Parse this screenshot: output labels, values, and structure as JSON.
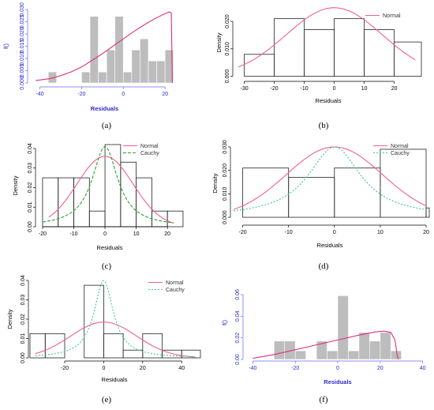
{
  "chart_data": [
    {
      "caption": "(a)",
      "type": "bar",
      "style": "blue",
      "fill": "#bdbdbd",
      "bins_edge": "#ffffff",
      "xlabel": "Residuals",
      "ylabel": "f()",
      "xlim": [
        -44,
        26
      ],
      "ylim": [
        0,
        0.03
      ],
      "xticks": [
        -40,
        -20,
        0,
        20
      ],
      "yticks": [
        0,
        0.005,
        0.01,
        0.015,
        0.02,
        0.025,
        0.03
      ],
      "ytick_labels": [
        "0.000",
        "0.005",
        "0.010",
        "0.015",
        "0.020",
        "0.025",
        "0.030"
      ],
      "bins": [
        [
          -36,
          -32,
          0.0045
        ],
        [
          -32,
          -24,
          0
        ],
        [
          -24,
          -20,
          0
        ],
        [
          -20,
          -16,
          0.0045
        ],
        [
          -16,
          -12,
          0.0272
        ],
        [
          -12,
          -8,
          0.0045
        ],
        [
          -8,
          -4,
          0.0135
        ],
        [
          -4,
          0,
          0.0272
        ],
        [
          0,
          4,
          0.0045
        ],
        [
          4,
          8,
          0.0135
        ],
        [
          8,
          12,
          0.018
        ],
        [
          12,
          16,
          0.009
        ],
        [
          16,
          20,
          0.009
        ],
        [
          20,
          24,
          0.0135
        ]
      ],
      "curves": [
        {
          "color": "#e0307a",
          "dash": "",
          "points": [
            [
              -42,
              0.001
            ],
            [
              -35,
              0.0018
            ],
            [
              -30,
              0.003
            ],
            [
              -25,
              0.0045
            ],
            [
              -20,
              0.0065
            ],
            [
              -15,
              0.0092
            ],
            [
              -10,
              0.012
            ],
            [
              -5,
              0.015
            ],
            [
              0,
              0.018
            ],
            [
              5,
              0.021
            ],
            [
              10,
              0.0237
            ],
            [
              15,
              0.0262
            ],
            [
              20,
              0.0283
            ],
            [
              22,
              0.029
            ],
            [
              23,
              0.0285
            ],
            [
              23.5,
              0.0
            ]
          ]
        }
      ],
      "legend": []
    },
    {
      "caption": "(b)",
      "type": "bar",
      "style": "black",
      "fill": "none",
      "xlabel": "Residuals",
      "ylabel": "Density",
      "xlim": [
        -32,
        28
      ],
      "ylim": [
        -0.001,
        0.0255
      ],
      "xticks": [
        -30,
        -20,
        -10,
        0,
        10,
        20
      ],
      "yticks": [
        0,
        0.01,
        0.02
      ],
      "ytick_labels": [
        "0.000",
        "0.010",
        "0.020"
      ],
      "bins": [
        [
          -30,
          -20,
          0.008
        ],
        [
          -20,
          -10,
          0.021
        ],
        [
          -10,
          0,
          0.017
        ],
        [
          0,
          10,
          0.021
        ],
        [
          10,
          20,
          0.017
        ],
        [
          20,
          30,
          0.0125
        ]
      ],
      "curves": [
        {
          "color": "#f4608a",
          "dash": "",
          "normal": {
            "mu": 0,
            "sd": 16,
            "peak": 0.025
          },
          "range": [
            -32,
            27
          ]
        }
      ],
      "legend": [
        {
          "name": "Normal",
          "color": "#f4608a",
          "dash": ""
        }
      ]
    },
    {
      "caption": "(c)",
      "type": "bar",
      "style": "black",
      "fill": "none",
      "xlabel": "Residuals",
      "ylabel": "Density",
      "xlim": [
        -21,
        24
      ],
      "ylim": [
        0,
        0.042
      ],
      "xticks": [
        -20,
        -10,
        0,
        10,
        20
      ],
      "yticks": [
        0,
        0.01,
        0.02,
        0.03,
        0.04
      ],
      "ytick_labels": [
        "0.00",
        "0.01",
        "0.02",
        "0.03",
        "0.04"
      ],
      "bins": [
        [
          -20,
          -15,
          0.025
        ],
        [
          -15,
          -10,
          0.025
        ],
        [
          -10,
          -5,
          0.025
        ],
        [
          -5,
          0,
          0.008
        ],
        [
          0,
          5,
          0.042
        ],
        [
          5,
          10,
          0.033
        ],
        [
          10,
          15,
          0.025
        ],
        [
          15,
          20,
          0.008
        ],
        [
          20,
          25,
          0.008
        ]
      ],
      "curves": [
        {
          "color": "#f4608a",
          "dash": "",
          "normal": {
            "mu": 0,
            "sd": 9,
            "peak": 0.036
          },
          "range": [
            -18,
            22
          ]
        },
        {
          "color": "#2ca02c",
          "dash": "4,2",
          "cauchy": {
            "x0": 0,
            "g": 5,
            "peak": 0.041
          },
          "range": [
            -20,
            22
          ]
        }
      ],
      "legend": [
        {
          "name": "Normal",
          "color": "#f4608a",
          "dash": ""
        },
        {
          "name": "Cauchy",
          "color": "#2ca02c",
          "dash": "4,2"
        }
      ]
    },
    {
      "caption": "(d)",
      "type": "bar",
      "style": "black",
      "fill": "none",
      "xlabel": "Residuals",
      "ylabel": "Density",
      "xlim": [
        -22,
        20
      ],
      "ylim": [
        -0.002,
        0.031
      ],
      "xticks": [
        -20,
        -10,
        0,
        10,
        20
      ],
      "yticks": [
        0,
        0.01,
        0.02,
        0.03
      ],
      "ytick_labels": [
        "0.000",
        "0.010",
        "0.020",
        "0.030"
      ],
      "bins": [
        [
          -20,
          -10,
          0.021
        ],
        [
          -10,
          0,
          0.017
        ],
        [
          0,
          10,
          0.021
        ],
        [
          10,
          20,
          0.029
        ],
        [
          20,
          30,
          0.004
        ]
      ],
      "curves": [
        {
          "color": "#f4608a",
          "dash": "",
          "normal": {
            "mu": 0,
            "sd": 10.5,
            "peak": 0.03
          },
          "range": [
            -22,
            20
          ]
        },
        {
          "color": "#3cc88c",
          "dash": "2,2",
          "cauchy": {
            "x0": 0,
            "g": 7,
            "peak": 0.03
          },
          "range": [
            -22,
            20
          ]
        }
      ],
      "legend": [
        {
          "name": "Normal",
          "color": "#f4608a",
          "dash": ""
        },
        {
          "name": "Cauchy",
          "color": "#3cc88c",
          "dash": "2,2"
        }
      ]
    },
    {
      "caption": "(e)",
      "type": "bar",
      "style": "black",
      "fill": "none",
      "xlabel": "Residuals",
      "ylabel": "Density",
      "xlim": [
        -37,
        48
      ],
      "ylim": [
        0,
        0.04
      ],
      "xticks": [
        -20,
        0,
        20,
        40
      ],
      "yticks": [
        0,
        0.01,
        0.02,
        0.03,
        0.04
      ],
      "ytick_labels": [
        "0.00",
        "0.01",
        "0.02",
        "0.03",
        "0.04"
      ],
      "bins": [
        [
          -40,
          -30,
          0.0125
        ],
        [
          -30,
          -20,
          0.0125
        ],
        [
          -20,
          -10,
          0
        ],
        [
          -10,
          0,
          0.0375
        ],
        [
          0,
          10,
          0.0125
        ],
        [
          10,
          20,
          0.004
        ],
        [
          20,
          30,
          0.0125
        ],
        [
          30,
          40,
          0.004
        ],
        [
          40,
          50,
          0.004
        ]
      ],
      "curves": [
        {
          "color": "#f4608a",
          "dash": "",
          "normal": {
            "mu": 0,
            "sd": 17,
            "peak": 0.0185
          },
          "range": [
            -35,
            47
          ]
        },
        {
          "color": "#3cc8a0",
          "dash": "2,2",
          "cauchy": {
            "x0": 0,
            "g": 6,
            "peak": 0.04
          },
          "range": [
            -35,
            47
          ]
        }
      ],
      "legend": [
        {
          "name": "Normal",
          "color": "#f4608a",
          "dash": ""
        },
        {
          "name": "Cauchy",
          "color": "#3cc8a0",
          "dash": "2,2"
        }
      ]
    },
    {
      "caption": "(f)",
      "type": "bar",
      "style": "blue",
      "fill": "#bdbdbd",
      "bins_edge": "#ffffff",
      "xlabel": "Residuals",
      "ylabel": "f()",
      "xlim": [
        -42,
        42
      ],
      "ylim": [
        0,
        0.068
      ],
      "xticks": [
        -40,
        -20,
        0,
        20,
        40
      ],
      "yticks": [
        0,
        0.02,
        0.04,
        0.06
      ],
      "ytick_labels": [
        "0.00",
        "0.02",
        "0.04",
        "0.06"
      ],
      "bins": [
        [
          -30,
          -25,
          0.017
        ],
        [
          -25,
          -20,
          0.017
        ],
        [
          -20,
          -15,
          0.008
        ],
        [
          -15,
          -10,
          0
        ],
        [
          -10,
          -5,
          0.017
        ],
        [
          -5,
          0,
          0.008
        ],
        [
          0,
          5,
          0.059
        ],
        [
          5,
          10,
          0.008
        ],
        [
          10,
          15,
          0.025
        ],
        [
          15,
          20,
          0.017
        ],
        [
          20,
          25,
          0.025
        ],
        [
          25,
          30,
          0.008
        ]
      ],
      "curves": [
        {
          "color": "#e0307a",
          "dash": "",
          "points": [
            [
              -40,
              0.001
            ],
            [
              -30,
              0.0045
            ],
            [
              -20,
              0.009
            ],
            [
              -10,
              0.0135
            ],
            [
              0,
              0.018
            ],
            [
              10,
              0.0225
            ],
            [
              18,
              0.0255
            ],
            [
              22,
              0.0262
            ],
            [
              25,
              0.025
            ],
            [
              27,
              0.018
            ],
            [
              28,
              0.004
            ],
            [
              28.5,
              0
            ]
          ]
        }
      ],
      "legend": []
    }
  ]
}
